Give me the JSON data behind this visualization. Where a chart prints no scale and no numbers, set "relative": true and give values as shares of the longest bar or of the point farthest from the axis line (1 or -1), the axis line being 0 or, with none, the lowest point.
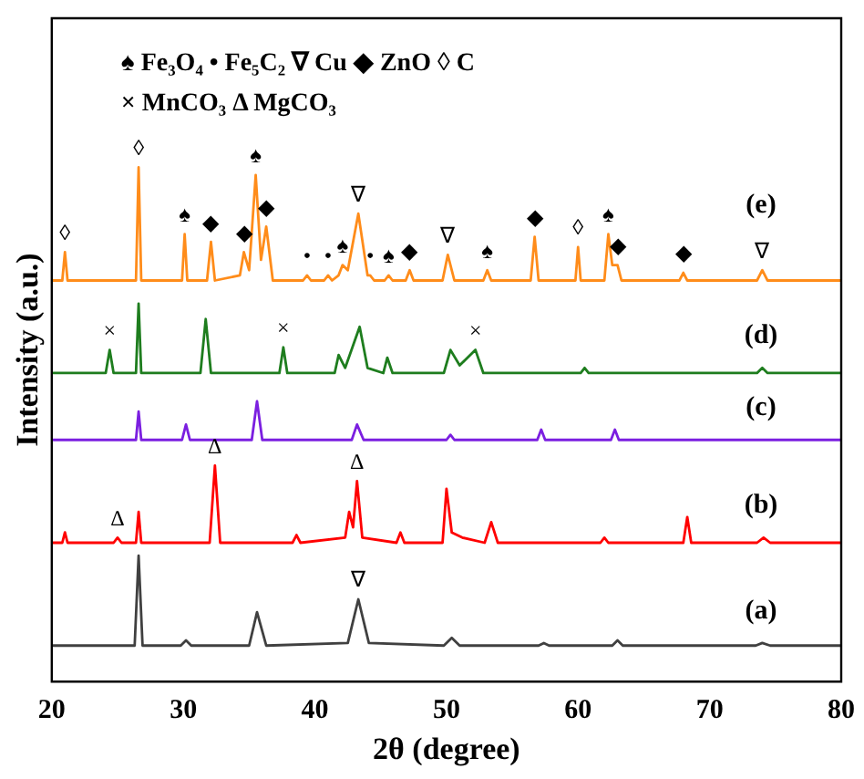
{
  "chart_data": {
    "type": "line",
    "relative": true,
    "xlabel": "2θ (degree)",
    "ylabel": "Intensity (a.u.)",
    "xlim": [
      20,
      80
    ],
    "xticks": [
      20,
      30,
      40,
      50,
      60,
      70,
      80
    ],
    "grid": false,
    "legend": false,
    "marker": "none",
    "line_style": "solid",
    "annotations": [
      "♠ Fe₃O₄ • Fe₅C₂ ∇ Cu ◆ ZnO ◊ C",
      "× MnCO₃ Δ MgCO₃",
      {
        "text": "◊",
        "x": 21.0,
        "y": 0.835
      },
      {
        "text": "◊",
        "x": 26.6,
        "y": 1
      },
      {
        "text": "♠",
        "x": 30.1,
        "y": 0.87
      },
      {
        "text": "◆",
        "x": 32.1,
        "y": 0.855
      },
      {
        "text": "◆",
        "x": 34.6,
        "y": 0.835
      },
      {
        "text": "♠",
        "x": 35.5,
        "y": 0.985
      },
      {
        "text": "◆",
        "x": 36.3,
        "y": 0.885
      },
      {
        "text": "•",
        "x": 39.4,
        "y": 0.79
      },
      {
        "text": "•",
        "x": 41.0,
        "y": 0.79
      },
      {
        "text": "♠",
        "x": 42.1,
        "y": 0.81
      },
      {
        "text": "∇",
        "x": 43.3,
        "y": 0.91
      },
      {
        "text": "•",
        "x": 44.2,
        "y": 0.79
      },
      {
        "text": "♠",
        "x": 45.6,
        "y": 0.79
      },
      {
        "text": "◆",
        "x": 47.2,
        "y": 0.8
      },
      {
        "text": "∇",
        "x": 50.1,
        "y": 0.83
      },
      {
        "text": "♠",
        "x": 53.1,
        "y": 0.8
      },
      {
        "text": "◆",
        "x": 56.7,
        "y": 0.865
      },
      {
        "text": "◊",
        "x": 60.0,
        "y": 0.845
      },
      {
        "text": "♠",
        "x": 62.3,
        "y": 0.87
      },
      {
        "text": "◆",
        "x": 63.0,
        "y": 0.81
      },
      {
        "text": "◆",
        "x": 68.0,
        "y": 0.795
      },
      {
        "text": "∇",
        "x": 74.0,
        "y": 0.8
      },
      {
        "text": "×",
        "x": 24.4,
        "y": 0.645
      },
      {
        "text": "×",
        "x": 37.6,
        "y": 0.65
      },
      {
        "text": "×",
        "x": 52.2,
        "y": 0.645
      },
      {
        "text": "Δ",
        "x": 25.0,
        "y": 0.28
      },
      {
        "text": "Δ",
        "x": 32.4,
        "y": 0.42
      },
      {
        "text": "Δ",
        "x": 43.2,
        "y": 0.39
      },
      {
        "text": "∇",
        "x": 43.3,
        "y": 0.16
      }
    ],
    "series": [
      {
        "name": "(e)",
        "color": "#ff8c1a",
        "x": [
          20,
          20.8,
          21.0,
          21.2,
          26.4,
          26.6,
          26.8,
          29.9,
          30.1,
          30.3,
          31.8,
          32.1,
          32.4,
          34.3,
          34.6,
          35.0,
          35.5,
          35.9,
          36.3,
          36.8,
          39.1,
          39.4,
          39.7,
          40.7,
          41.0,
          41.3,
          41.8,
          42.1,
          42.5,
          43.3,
          44.0,
          44.2,
          44.5,
          45.3,
          45.6,
          45.9,
          46.9,
          47.2,
          47.5,
          49.7,
          50.1,
          50.6,
          52.8,
          53.1,
          53.4,
          56.4,
          56.7,
          57.0,
          59.8,
          60.0,
          60.2,
          62.0,
          62.3,
          62.6,
          63.0,
          63.3,
          67.7,
          68.0,
          68.3,
          73.6,
          74.0,
          74.4,
          80
        ],
        "values": [
          0.78,
          0.78,
          0.835,
          0.78,
          0.78,
          1,
          0.78,
          0.78,
          0.87,
          0.78,
          0.78,
          0.855,
          0.78,
          0.79,
          0.835,
          0.8,
          0.985,
          0.82,
          0.885,
          0.78,
          0.78,
          0.79,
          0.78,
          0.78,
          0.79,
          0.78,
          0.79,
          0.81,
          0.8,
          0.91,
          0.79,
          0.79,
          0.78,
          0.78,
          0.79,
          0.78,
          0.78,
          0.8,
          0.78,
          0.78,
          0.83,
          0.78,
          0.78,
          0.8,
          0.78,
          0.78,
          0.865,
          0.78,
          0.78,
          0.845,
          0.78,
          0.78,
          0.87,
          0.81,
          0.81,
          0.78,
          0.78,
          0.795,
          0.78,
          0.78,
          0.8,
          0.78,
          0.78
        ]
      },
      {
        "name": "(d)",
        "color": "#1e7d1e",
        "x": [
          20,
          24.1,
          24.4,
          24.7,
          26.4,
          26.6,
          26.8,
          31.3,
          31.7,
          32.1,
          37.3,
          37.6,
          37.9,
          41.5,
          41.8,
          42.3,
          43.4,
          44.0,
          45.2,
          45.5,
          45.9,
          49.8,
          50.3,
          51.0,
          52.2,
          52.8,
          60.2,
          60.5,
          60.8,
          73.6,
          74.0,
          74.4,
          80
        ],
        "values": [
          0.6,
          0.6,
          0.645,
          0.6,
          0.6,
          0.735,
          0.6,
          0.6,
          0.705,
          0.6,
          0.6,
          0.65,
          0.6,
          0.6,
          0.635,
          0.61,
          0.69,
          0.61,
          0.6,
          0.63,
          0.6,
          0.6,
          0.645,
          0.615,
          0.645,
          0.6,
          0.6,
          0.61,
          0.6,
          0.6,
          0.61,
          0.6,
          0.6
        ]
      },
      {
        "name": "(c)",
        "color": "#7b1fe0",
        "x": [
          20,
          26.4,
          26.6,
          26.8,
          29.9,
          30.2,
          30.5,
          35.2,
          35.6,
          36.0,
          42.8,
          43.2,
          43.7,
          50.0,
          50.3,
          50.6,
          56.9,
          57.2,
          57.5,
          62.5,
          62.8,
          63.1,
          80
        ],
        "values": [
          0.47,
          0.47,
          0.525,
          0.47,
          0.47,
          0.5,
          0.47,
          0.47,
          0.545,
          0.47,
          0.47,
          0.5,
          0.47,
          0.47,
          0.48,
          0.47,
          0.47,
          0.49,
          0.47,
          0.47,
          0.49,
          0.47,
          0.47
        ]
      },
      {
        "name": "(b)",
        "color": "#ff0000",
        "x": [
          20,
          20.8,
          21.0,
          21.2,
          24.7,
          25.0,
          25.3,
          26.4,
          26.6,
          26.8,
          32.0,
          32.4,
          32.8,
          38.3,
          38.6,
          38.9,
          42.3,
          42.6,
          42.9,
          43.2,
          43.6,
          46.2,
          46.5,
          46.8,
          49.7,
          50.0,
          50.4,
          51.2,
          52.9,
          53.4,
          53.9,
          61.7,
          62.0,
          62.3,
          68.0,
          68.3,
          68.6,
          73.6,
          74.1,
          74.6,
          80
        ],
        "values": [
          0.27,
          0.27,
          0.29,
          0.27,
          0.27,
          0.28,
          0.27,
          0.27,
          0.33,
          0.27,
          0.27,
          0.42,
          0.27,
          0.27,
          0.285,
          0.27,
          0.28,
          0.33,
          0.3,
          0.39,
          0.28,
          0.27,
          0.29,
          0.27,
          0.27,
          0.375,
          0.29,
          0.28,
          0.27,
          0.31,
          0.27,
          0.27,
          0.28,
          0.27,
          0.27,
          0.32,
          0.27,
          0.27,
          0.28,
          0.27,
          0.27
        ]
      },
      {
        "name": "(a)",
        "color": "#404040",
        "x": [
          20,
          26.3,
          26.6,
          26.9,
          29.8,
          30.2,
          30.6,
          35.0,
          35.6,
          36.3,
          42.5,
          43.3,
          44.1,
          49.8,
          50.4,
          51.0,
          57.0,
          57.4,
          57.8,
          62.6,
          63.0,
          63.4,
          73.5,
          74.0,
          74.6,
          80
        ],
        "values": [
          0.07,
          0.07,
          0.245,
          0.07,
          0.07,
          0.08,
          0.07,
          0.07,
          0.135,
          0.07,
          0.075,
          0.16,
          0.075,
          0.07,
          0.085,
          0.07,
          0.07,
          0.075,
          0.07,
          0.07,
          0.08,
          0.07,
          0.07,
          0.075,
          0.07,
          0.07
        ]
      }
    ]
  }
}
